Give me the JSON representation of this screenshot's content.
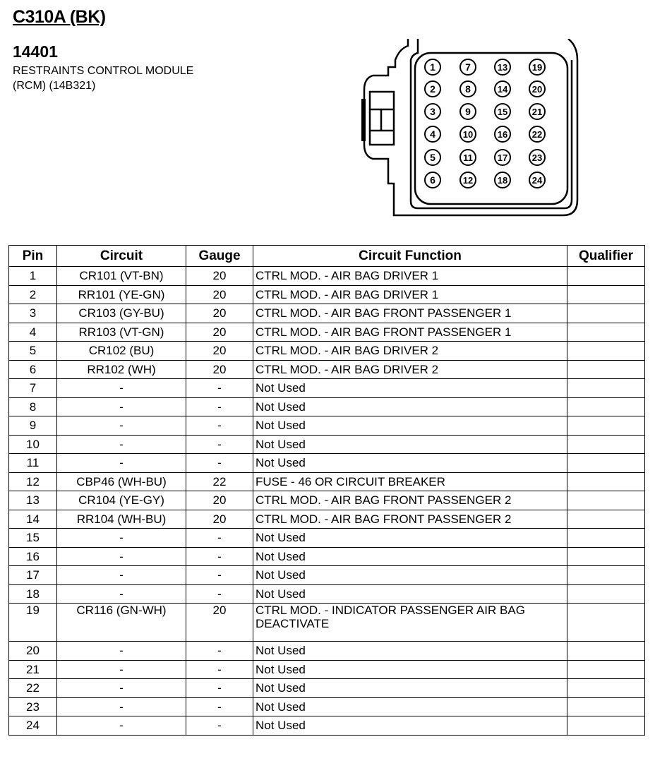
{
  "header": {
    "title": "C310A (BK)",
    "code": "14401",
    "description_line1": "RESTRAINTS CONTROL MODULE",
    "description_line2": "(RCM) (14B321)"
  },
  "connector": {
    "pins": [
      "1",
      "2",
      "3",
      "4",
      "5",
      "6",
      "7",
      "8",
      "9",
      "10",
      "11",
      "12",
      "13",
      "14",
      "15",
      "16",
      "17",
      "18",
      "19",
      "20",
      "21",
      "22",
      "23",
      "24"
    ]
  },
  "table": {
    "columns": [
      "Pin",
      "Circuit",
      "Gauge",
      "Circuit Function",
      "Qualifier"
    ],
    "rows": [
      {
        "pin": "1",
        "circuit": "CR101 (VT-BN)",
        "gauge": "20",
        "function": "CTRL MOD. - AIR BAG DRIVER 1",
        "qualifier": ""
      },
      {
        "pin": "2",
        "circuit": "RR101 (YE-GN)",
        "gauge": "20",
        "function": "CTRL MOD. - AIR BAG DRIVER 1",
        "qualifier": ""
      },
      {
        "pin": "3",
        "circuit": "CR103 (GY-BU)",
        "gauge": "20",
        "function": "CTRL MOD. - AIR BAG FRONT PASSENGER 1",
        "qualifier": ""
      },
      {
        "pin": "4",
        "circuit": "RR103 (VT-GN)",
        "gauge": "20",
        "function": "CTRL MOD. - AIR BAG FRONT PASSENGER 1",
        "qualifier": ""
      },
      {
        "pin": "5",
        "circuit": "CR102 (BU)",
        "gauge": "20",
        "function": "CTRL MOD. - AIR BAG DRIVER 2",
        "qualifier": ""
      },
      {
        "pin": "6",
        "circuit": "RR102 (WH)",
        "gauge": "20",
        "function": "CTRL MOD. - AIR BAG DRIVER 2",
        "qualifier": ""
      },
      {
        "pin": "7",
        "circuit": "-",
        "gauge": "-",
        "function": "Not Used",
        "qualifier": ""
      },
      {
        "pin": "8",
        "circuit": "-",
        "gauge": "-",
        "function": "Not Used",
        "qualifier": ""
      },
      {
        "pin": "9",
        "circuit": "-",
        "gauge": "-",
        "function": "Not Used",
        "qualifier": ""
      },
      {
        "pin": "10",
        "circuit": "-",
        "gauge": "-",
        "function": "Not Used",
        "qualifier": ""
      },
      {
        "pin": "11",
        "circuit": "-",
        "gauge": "-",
        "function": "Not Used",
        "qualifier": ""
      },
      {
        "pin": "12",
        "circuit": "CBP46 (WH-BU)",
        "gauge": "22",
        "function": "FUSE - 46 OR CIRCUIT BREAKER",
        "qualifier": ""
      },
      {
        "pin": "13",
        "circuit": "CR104 (YE-GY)",
        "gauge": "20",
        "function": "CTRL MOD. - AIR BAG FRONT PASSENGER 2",
        "qualifier": ""
      },
      {
        "pin": "14",
        "circuit": "RR104 (WH-BU)",
        "gauge": "20",
        "function": "CTRL MOD. - AIR BAG FRONT PASSENGER 2",
        "qualifier": ""
      },
      {
        "pin": "15",
        "circuit": "-",
        "gauge": "-",
        "function": "Not Used",
        "qualifier": ""
      },
      {
        "pin": "16",
        "circuit": "-",
        "gauge": "-",
        "function": "Not Used",
        "qualifier": ""
      },
      {
        "pin": "17",
        "circuit": "-",
        "gauge": "-",
        "function": "Not Used",
        "qualifier": ""
      },
      {
        "pin": "18",
        "circuit": "-",
        "gauge": "-",
        "function": "Not Used",
        "qualifier": ""
      },
      {
        "pin": "19",
        "circuit": "CR116 (GN-WH)",
        "gauge": "20",
        "function": "CTRL MOD. - INDICATOR PASSENGER AIR BAG DEACTIVATE",
        "qualifier": ""
      },
      {
        "pin": "20",
        "circuit": "-",
        "gauge": "-",
        "function": "Not Used",
        "qualifier": ""
      },
      {
        "pin": "21",
        "circuit": "-",
        "gauge": "-",
        "function": "Not Used",
        "qualifier": ""
      },
      {
        "pin": "22",
        "circuit": "-",
        "gauge": "-",
        "function": "Not Used",
        "qualifier": ""
      },
      {
        "pin": "23",
        "circuit": "-",
        "gauge": "-",
        "function": "Not Used",
        "qualifier": ""
      },
      {
        "pin": "24",
        "circuit": "-",
        "gauge": "-",
        "function": "Not Used",
        "qualifier": ""
      }
    ]
  }
}
